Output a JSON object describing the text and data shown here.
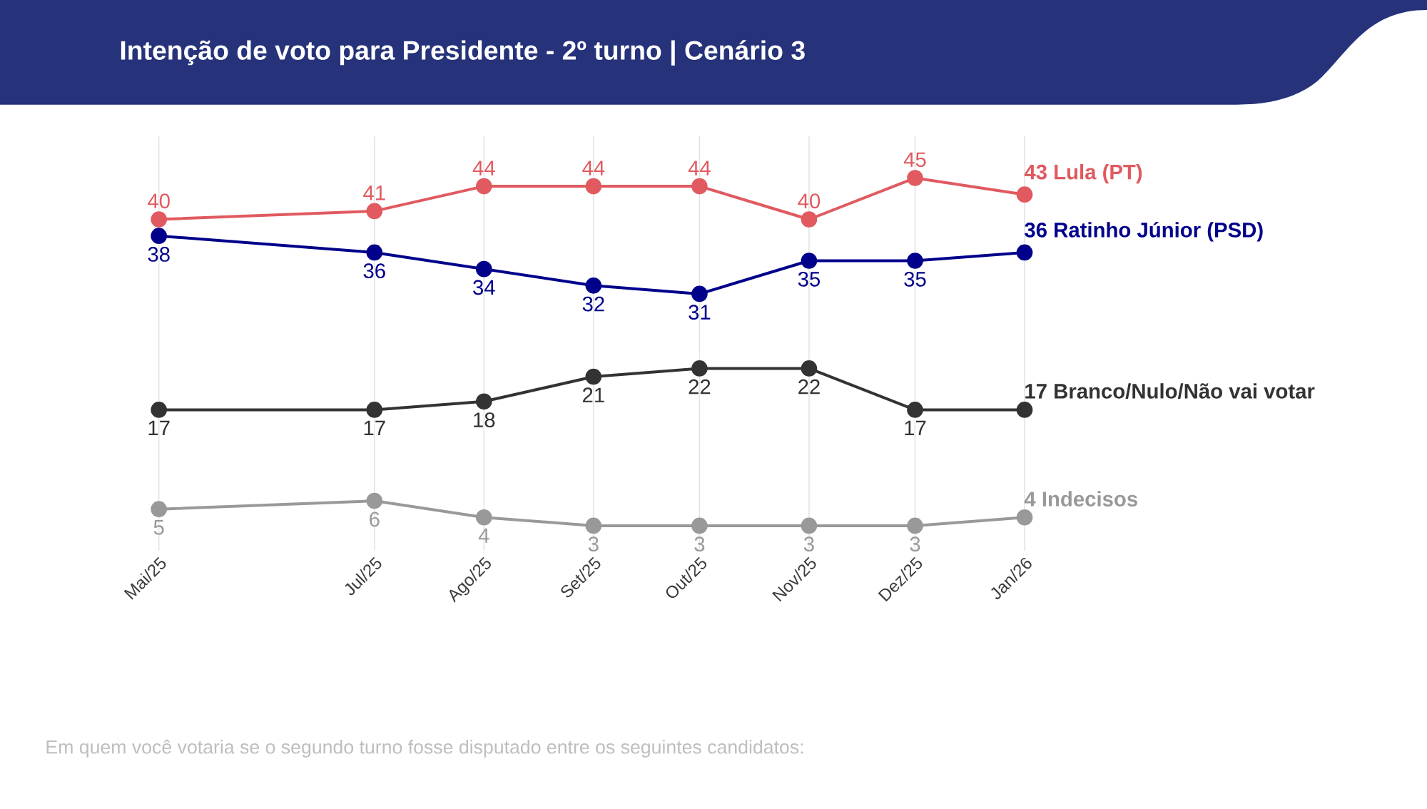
{
  "chart_data": {
    "type": "line",
    "title": "Intenção de voto para Presidente - 2º turno | Cenário 3",
    "x": [
      "2025-05",
      "2025-07",
      "2025-08",
      "2025-09",
      "2025-10",
      "2025-11",
      "2025-12",
      "2026-01"
    ],
    "xlim": [
      "2025-05",
      "2026-01"
    ],
    "xticks": [
      {
        "value": "2025-05",
        "label": "Mai/25"
      },
      {
        "value": "2025-07",
        "label": "Jul/25"
      },
      {
        "value": "2025-08",
        "label": "Ago/25"
      },
      {
        "value": "2025-09",
        "label": "Set/25"
      },
      {
        "value": "2025-10",
        "label": "Out/25"
      },
      {
        "value": "2025-11",
        "label": "Nov/25"
      },
      {
        "value": "2025-12",
        "label": "Dez/25"
      },
      {
        "value": "2026-01",
        "label": "Jan/26"
      }
    ],
    "series": [
      {
        "name": "Lula (PT)",
        "color": "#e05a5f",
        "values": [
          40,
          41,
          44,
          44,
          44,
          40,
          45,
          43
        ]
      },
      {
        "name": "Ratinho Júnior (PSD)",
        "color": "#00008b",
        "values": [
          38,
          36,
          34,
          32,
          31,
          35,
          35,
          36
        ]
      },
      {
        "name": "Branco/Nulo/Não vai votar",
        "color": "#333333",
        "values": [
          17,
          17,
          18,
          21,
          22,
          22,
          17,
          17
        ]
      },
      {
        "name": "Indecisos",
        "color": "#999999",
        "values": [
          5,
          6,
          4,
          3,
          3,
          3,
          3,
          4
        ]
      }
    ],
    "data_labels": true,
    "grid": "x",
    "tick_labels": "x",
    "marker": "circle",
    "line_style": "solid",
    "legend": false,
    "annotations": [
      "Em quem você votaria se o segundo turno fosse disputado entre os seguintes candidatos:"
    ]
  }
}
